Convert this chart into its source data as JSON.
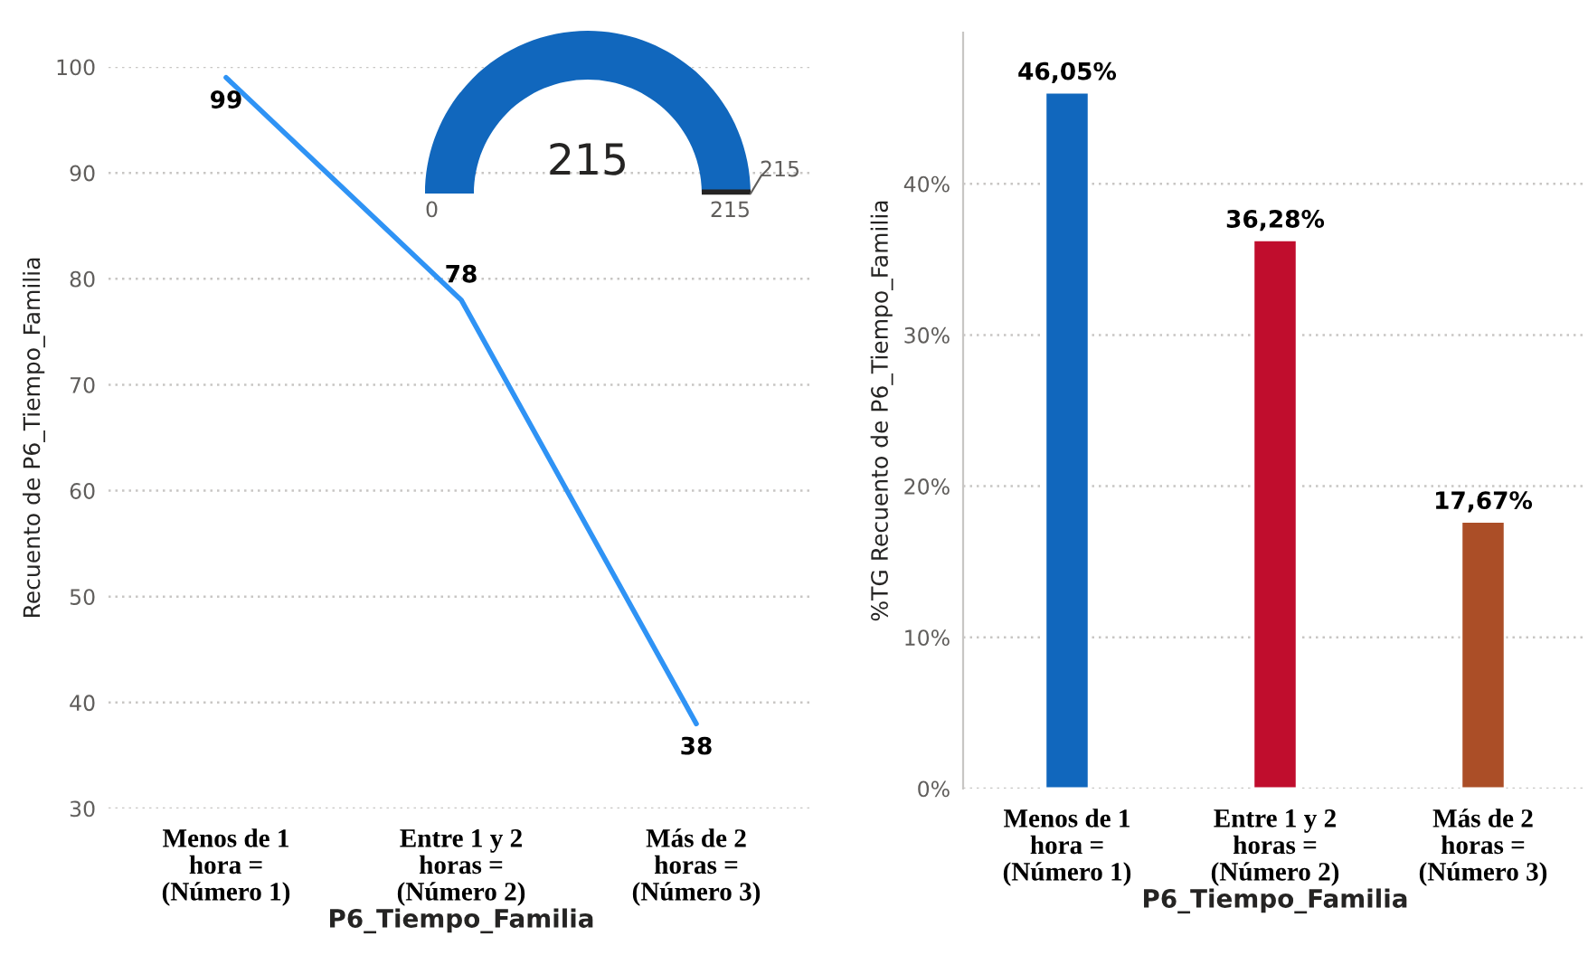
{
  "chart_data": [
    {
      "type": "line",
      "xlabel": "P6_Tiempo_Familia",
      "ylabel": "Recuento de P6_Tiempo_Familia",
      "categories": [
        "Menos de 1\nhora =\n(Número 1)",
        "Entre 1 y 2\nhoras =\n(Número 2)",
        "Más de 2\nhoras =\n(Número 3)"
      ],
      "series": [
        {
          "color": "#2f93f5",
          "values": [
            99,
            78,
            38
          ]
        }
      ],
      "ylim": [
        30,
        100
      ],
      "yticks": [
        30,
        40,
        50,
        60,
        70,
        80,
        90,
        100
      ],
      "grid": "y",
      "data_labels": true
    },
    {
      "type": "pie",
      "categories": [
        null
      ],
      "values": [
        215
      ],
      "colors": [
        "#1167bd"
      ],
      "data_labels": true,
      "annotations": [
        "0",
        "215",
        "215"
      ]
    },
    {
      "type": "bar",
      "xlabel": "P6_Tiempo_Familia",
      "ylabel": "%TG Recuento de P6_Tiempo_Familia",
      "categories": [
        "Menos de 1\nhora =\n(Número 1)",
        "Entre 1 y 2\nhoras =\n(Número 2)",
        "Más de 2\nhoras =\n(Número 3)"
      ],
      "values": [
        46.05,
        36.28,
        17.67
      ],
      "colors": [
        "#1167bd",
        "#c00d2d",
        "#ab4e27"
      ],
      "value_labels": [
        "46,05%",
        "36,28%",
        "17,67%"
      ],
      "ylim": [
        0,
        50
      ],
      "yticks": [
        {
          "value": 0,
          "label": "0%"
        },
        {
          "value": 10,
          "label": "10%"
        },
        {
          "value": 20,
          "label": "20%"
        },
        {
          "value": 30,
          "label": "30%"
        },
        {
          "value": 40,
          "label": "40%"
        }
      ],
      "grid": "y"
    }
  ]
}
